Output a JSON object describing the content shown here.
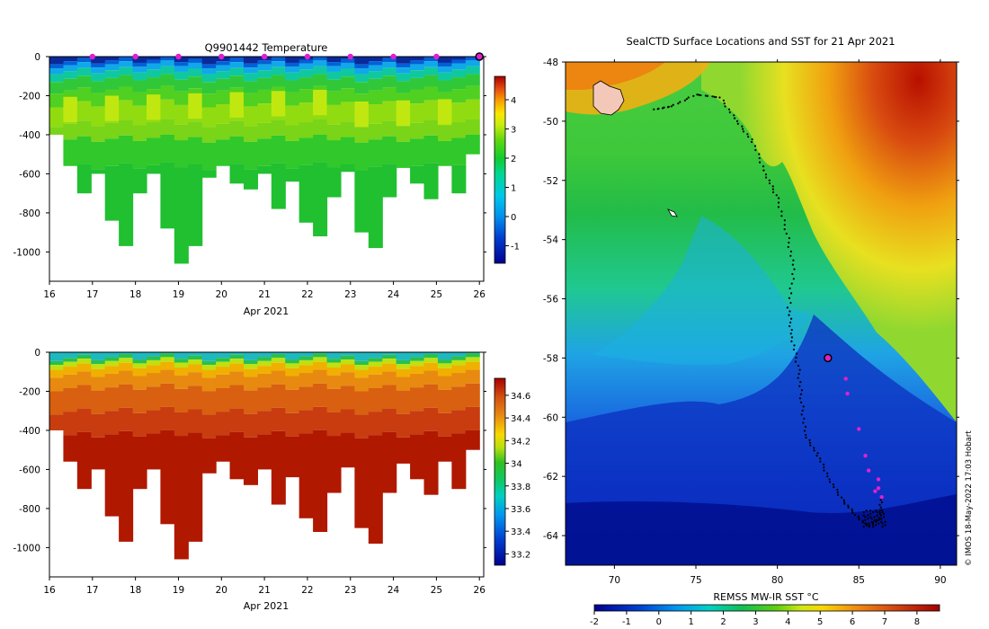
{
  "chart_data": [
    {
      "type": "heatmap",
      "name": "temperature-section",
      "title": "Q9901442  Temperature",
      "xlabel": "Apr 2021",
      "ylabel": "",
      "xlim": [
        16,
        26.1
      ],
      "ylim": [
        -1150,
        0
      ],
      "xticks": [
        "16",
        "17",
        "18",
        "19",
        "20",
        "21",
        "22",
        "23",
        "24",
        "25",
        "26"
      ],
      "yticks": [
        "0",
        "-200",
        "-400",
        "-600",
        "-800",
        "-1000"
      ],
      "colorbar": {
        "ticks": [
          "-1",
          "0",
          "1",
          "2",
          "3",
          "4"
        ],
        "range": [
          -1.6,
          4.8
        ]
      },
      "surface_marker_days": [
        17,
        18,
        19,
        20,
        21,
        22,
        23,
        24,
        25
      ],
      "last_profile_day": 26,
      "profile_bottom_depths": [
        -400,
        -560,
        -700,
        -600,
        -840,
        -970,
        -700,
        -600,
        -880,
        -1060,
        -970,
        -620,
        -560,
        -650,
        -680,
        -600,
        -780,
        -640,
        -850,
        -920,
        -720,
        -590,
        -900,
        -980,
        -720,
        -570,
        -650,
        -730,
        -560,
        -700,
        -500
      ]
    },
    {
      "type": "heatmap",
      "name": "salinity-section",
      "title": "",
      "xlabel": "Apr 2021",
      "xlim": [
        16,
        26.1
      ],
      "ylim": [
        -1150,
        0
      ],
      "xticks": [
        "16",
        "17",
        "18",
        "19",
        "20",
        "21",
        "22",
        "23",
        "24",
        "25",
        "26"
      ],
      "yticks": [
        "0",
        "-200",
        "-400",
        "-600",
        "-800",
        "-1000"
      ],
      "colorbar": {
        "ticks": [
          "33.2",
          "33.4",
          "33.6",
          "33.8",
          "34",
          "34.2",
          "34.4",
          "34.6"
        ],
        "range": [
          33.1,
          34.75
        ]
      }
    },
    {
      "type": "heatmap",
      "name": "sst-map",
      "title": "SealCTD Surface Locations and SST for 21 Apr 2021",
      "xlim": [
        67,
        91
      ],
      "ylim": [
        -65,
        -48
      ],
      "xticks": [
        "70",
        "75",
        "80",
        "85",
        "90"
      ],
      "yticks": [
        "-48",
        "-50",
        "-52",
        "-54",
        "-56",
        "-58",
        "-60",
        "-62",
        "-64"
      ],
      "colorbar": {
        "label": "REMSS MW-IR SST °C",
        "ticks": [
          "-2",
          "-1",
          "0",
          "1",
          "2",
          "3",
          "4",
          "5",
          "6",
          "7",
          "8"
        ],
        "range": [
          -2,
          8.7
        ]
      },
      "seal_track": [
        [
          72.5,
          -49.6
        ],
        [
          73.5,
          -49.5
        ],
        [
          75,
          -49.1
        ],
        [
          76.5,
          -49.2
        ],
        [
          77.5,
          -50
        ],
        [
          78.5,
          -50.7
        ],
        [
          79.3,
          -51.8
        ],
        [
          80,
          -52.6
        ],
        [
          80.6,
          -53.8
        ],
        [
          81,
          -55
        ],
        [
          80.7,
          -56.3
        ],
        [
          80.9,
          -57.3
        ],
        [
          81.3,
          -58.4
        ],
        [
          81.5,
          -59.5
        ],
        [
          81.7,
          -60.6
        ],
        [
          82.5,
          -61.3
        ],
        [
          83.2,
          -62.1
        ],
        [
          84,
          -62.8
        ],
        [
          84.8,
          -63.3
        ],
        [
          85.6,
          -63.7
        ],
        [
          86.3,
          -63.4
        ],
        [
          86.4,
          -62.7
        ]
      ],
      "current_position": [
        83.1,
        -58
      ],
      "recent_positions": [
        [
          84.2,
          -58.7
        ],
        [
          84.3,
          -59.2
        ],
        [
          85,
          -60.4
        ],
        [
          85.4,
          -61.3
        ],
        [
          85.6,
          -61.8
        ],
        [
          86.2,
          -62.4
        ],
        [
          86.4,
          -62.7
        ],
        [
          86.2,
          -62.1
        ],
        [
          86,
          -62.5
        ]
      ],
      "credit": "© IMOS 18-May-2022 17:03 Hobart"
    }
  ]
}
